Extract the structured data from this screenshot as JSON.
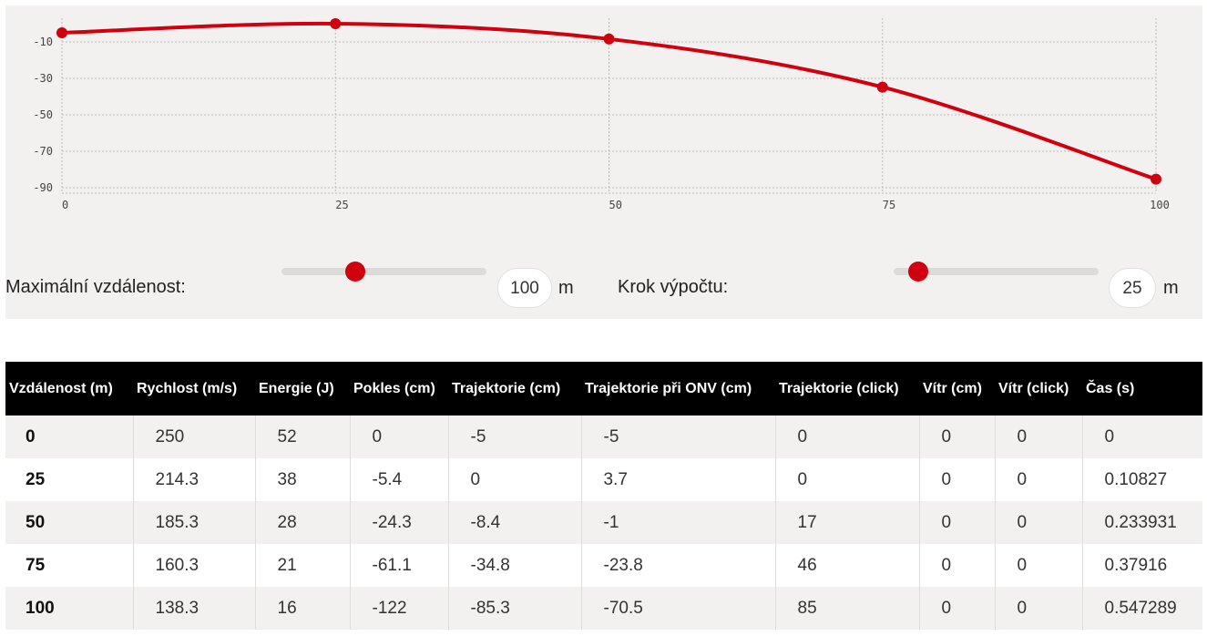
{
  "chart_data": {
    "type": "line",
    "x": [
      0,
      25,
      50,
      75,
      100
    ],
    "values": [
      -5,
      0,
      -8.4,
      -34.8,
      -85.3
    ],
    "xticks": [
      "0",
      "25",
      "50",
      "75",
      "100"
    ],
    "yticks": [
      "-10",
      "-30",
      "-50",
      "-70",
      "-90"
    ],
    "ylim": [
      -93,
      3
    ],
    "xlim": [
      0,
      100
    ],
    "grid": true,
    "color": "#d0000f"
  },
  "controls": {
    "max_distance": {
      "label": "Maximální vzdálenost:",
      "value": "100",
      "unit": "m",
      "fraction": 0.36
    },
    "step": {
      "label": "Krok výpočtu:",
      "value": "25",
      "unit": "m",
      "fraction": 0.12
    }
  },
  "table": {
    "headers": [
      "Vzdálenost (m)",
      "Rychlost (m/s)",
      "Energie (J)",
      "Pokles (cm)",
      "Trajektorie (cm)",
      "Trajektorie při ONV (cm)",
      "Trajektorie (click)",
      "Vítr (cm)",
      "Vítr (click)",
      "Čas (s)"
    ],
    "rows": [
      [
        "0",
        "250",
        "52",
        "0",
        "-5",
        "-5",
        "0",
        "0",
        "0",
        "0"
      ],
      [
        "25",
        "214.3",
        "38",
        "-5.4",
        "0",
        "3.7",
        "0",
        "0",
        "0",
        "0.10827"
      ],
      [
        "50",
        "185.3",
        "28",
        "-24.3",
        "-8.4",
        "-1",
        "17",
        "0",
        "0",
        "0.233931"
      ],
      [
        "75",
        "160.3",
        "21",
        "-61.1",
        "-34.8",
        "-23.8",
        "46",
        "0",
        "0",
        "0.37916"
      ],
      [
        "100",
        "138.3",
        "16",
        "-122",
        "-85.3",
        "-70.5",
        "85",
        "0",
        "0",
        "0.547289"
      ]
    ]
  }
}
